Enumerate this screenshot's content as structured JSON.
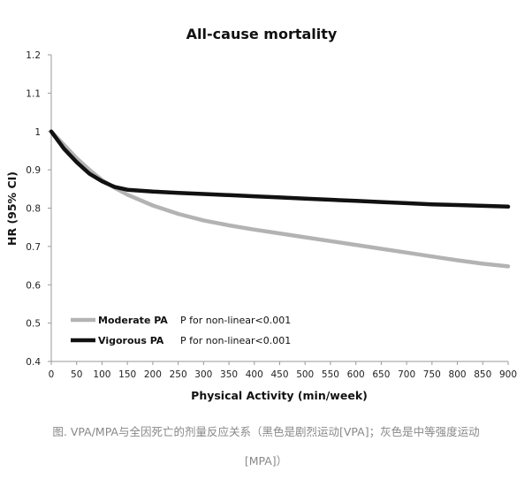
{
  "chart_data": {
    "type": "line",
    "title": "All-cause mortality",
    "xlabel": "Physical Activity (min/week)",
    "ylabel": "HR (95% CI)",
    "xlim": [
      0,
      900
    ],
    "ylim": [
      0.4,
      1.2
    ],
    "x_ticks": [
      "0",
      "50",
      "100",
      "150",
      "200",
      "250",
      "300",
      "350",
      "400",
      "450",
      "500",
      "550",
      "600",
      "650",
      "700",
      "750",
      "800",
      "850",
      "900"
    ],
    "y_ticks": [
      "0.4",
      "0.5",
      "0.6",
      "0.7",
      "0.8",
      "0.9",
      "1",
      "1.1",
      "1.2"
    ],
    "grid": false,
    "legend_position": "bottom-left",
    "x": [
      0,
      25,
      50,
      75,
      100,
      125,
      150,
      200,
      250,
      300,
      350,
      400,
      450,
      500,
      550,
      600,
      650,
      700,
      750,
      800,
      850,
      900
    ],
    "series": [
      {
        "name": "Moderate PA",
        "note": "P for non-linear<0.001",
        "color": "#b3b3b3",
        "values": [
          1.0,
          0.965,
          0.93,
          0.9,
          0.873,
          0.853,
          0.835,
          0.807,
          0.785,
          0.768,
          0.755,
          0.744,
          0.734,
          0.724,
          0.714,
          0.704,
          0.694,
          0.684,
          0.674,
          0.664,
          0.655,
          0.648
        ]
      },
      {
        "name": "Vigorous PA",
        "note": "P for non-linear<0.001",
        "color": "#111111",
        "values": [
          1.0,
          0.955,
          0.92,
          0.89,
          0.87,
          0.855,
          0.848,
          0.843,
          0.84,
          0.837,
          0.834,
          0.831,
          0.828,
          0.825,
          0.822,
          0.819,
          0.816,
          0.813,
          0.81,
          0.808,
          0.806,
          0.804
        ]
      }
    ]
  },
  "caption": {
    "line1": "图. VPA/MPA与全因死亡的剂量反应关系（黑色是剧烈运动[VPA]；灰色是中等强度运动",
    "line2": "[MPA]）"
  }
}
